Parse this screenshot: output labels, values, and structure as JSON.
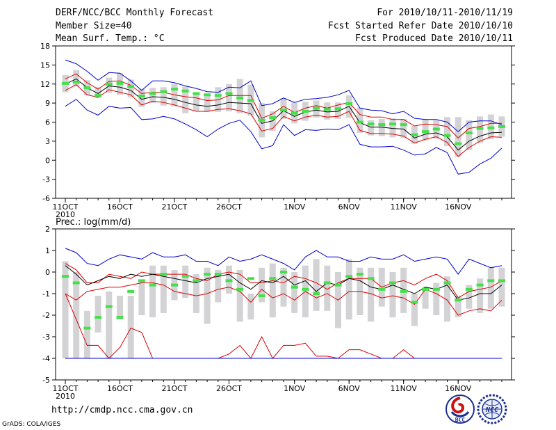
{
  "header": {
    "title": "DERF/NCC/BCC Monthly Forecast",
    "member_size": "Member Size=40",
    "variable": "Mean Surf. Temp.: °C",
    "period": "For 2010/10/11-2010/11/19",
    "started": "Fcst Started Refer Date 2010/10/10",
    "produced": "Fcst Produced Date 2010/10/11"
  },
  "footer": {
    "url": "http://cmdp.ncc.cma.gov.cn",
    "grads": "GrADS: COLA/IGES",
    "logo_bcc": "BCC",
    "logo_ncc": "NCC"
  },
  "colors": {
    "range": "#0000cc",
    "spread": "#dd0000",
    "mean": "#000000",
    "box": "#d3d3d6",
    "bar": "#44e04a",
    "background": "#ffffff"
  },
  "chart_data": [
    {
      "type": "line",
      "title": "Mean Surf. Temp.: °C",
      "ylabel": "°C",
      "ylim": [
        -6,
        18
      ],
      "yticks": [
        -6,
        -3,
        0,
        3,
        6,
        9,
        12,
        15,
        18
      ],
      "x_days": 40,
      "xticks": [
        {
          "day": 0,
          "label": "11OCT",
          "sub": "2010"
        },
        {
          "day": 5,
          "label": "16OCT",
          "sub": ""
        },
        {
          "day": 10,
          "label": "21OCT",
          "sub": ""
        },
        {
          "day": 15,
          "label": "26OCT",
          "sub": ""
        },
        {
          "day": 21,
          "label": "1NOV",
          "sub": ""
        },
        {
          "day": 26,
          "label": "6NOV",
          "sub": ""
        },
        {
          "day": 31,
          "label": "11NOV",
          "sub": ""
        },
        {
          "day": 36,
          "label": "16NOV",
          "sub": ""
        }
      ],
      "series": [
        {
          "name": "max",
          "color": "range",
          "values": [
            15.8,
            15.2,
            14,
            12.6,
            13.8,
            13.7,
            12.5,
            11,
            12.5,
            12.5,
            12.2,
            11.7,
            11.3,
            10.8,
            10.7,
            11.5,
            11.4,
            12.5,
            8.6,
            8.9,
            9.8,
            9.1,
            9.6,
            9.7,
            9.9,
            10.3,
            11,
            8.2,
            7.9,
            7.8,
            7.3,
            7.7,
            6.6,
            6.4,
            6.4,
            6,
            4.5,
            6,
            6.2,
            6.2,
            5.6
          ]
        },
        {
          "name": "upper",
          "color": "spread",
          "values": [
            12.8,
            13.6,
            12.2,
            11.2,
            12.4,
            12.5,
            11.8,
            10.5,
            10.7,
            10.7,
            10.3,
            10,
            9.8,
            9.4,
            9.5,
            10.2,
            10.2,
            10.2,
            6.6,
            7.3,
            8.5,
            7.5,
            8.2,
            8.6,
            8.2,
            8.7,
            9.1,
            7.2,
            6.8,
            6.8,
            6.4,
            6.4,
            5.4,
            5.7,
            5.6,
            5.3,
            3.5,
            5,
            5.3,
            5.8,
            5.8
          ]
        },
        {
          "name": "mean",
          "color": "mean",
          "values": [
            12,
            12.8,
            11.4,
            10.5,
            11.7,
            11.5,
            11,
            9.6,
            10,
            9.9,
            9.6,
            9.1,
            8.7,
            8.5,
            8.7,
            9.1,
            9,
            8.9,
            5.8,
            6.2,
            7.8,
            6.9,
            7.6,
            7.9,
            7.6,
            7.7,
            8.5,
            5.9,
            5.2,
            5.2,
            5,
            4.9,
            3.5,
            4.1,
            4.3,
            3.7,
            1.6,
            3,
            3.8,
            4.3,
            4.4
          ]
        },
        {
          "name": "lower",
          "color": "spread",
          "values": [
            11,
            11.9,
            10.3,
            9.9,
            11.1,
            10.7,
            10.3,
            8.7,
            9.3,
            9.1,
            8.7,
            8.2,
            7.7,
            7.7,
            8,
            8.1,
            7.8,
            7.3,
            4.6,
            5,
            6.9,
            6.2,
            6.8,
            7.1,
            6.8,
            6.9,
            7.7,
            4.7,
            4.2,
            4.2,
            4.1,
            3.8,
            2.7,
            3.3,
            3.7,
            2.8,
            0.6,
            2,
            3,
            3.7,
            3.6
          ]
        },
        {
          "name": "min",
          "color": "range",
          "values": [
            8.5,
            9.6,
            7.9,
            7.1,
            8.5,
            8.2,
            8.3,
            6.4,
            6.5,
            6.9,
            6.5,
            5.7,
            4.8,
            3.7,
            4.9,
            5.8,
            6.3,
            4.5,
            1.8,
            2.3,
            5.6,
            3.9,
            4.8,
            4.7,
            4.9,
            4.8,
            5.6,
            2.5,
            2.1,
            2.1,
            2.2,
            1.6,
            0.8,
            1,
            2,
            1.2,
            -2.2,
            -1.9,
            -0.6,
            0.3,
            1.9
          ]
        }
      ],
      "boxes": [
        [
          10.7,
          13.4
        ],
        [
          11.6,
          14.2
        ],
        [
          10.2,
          12.6
        ],
        [
          9.8,
          11.5
        ],
        [
          10.6,
          13
        ],
        [
          10.3,
          13.7
        ],
        [
          9.9,
          12.7
        ],
        [
          8.4,
          11.2
        ],
        [
          9,
          11.4
        ],
        [
          8.6,
          11.5
        ],
        [
          8.5,
          12
        ],
        [
          7.4,
          11.6
        ],
        [
          7.8,
          10.7
        ],
        [
          7.6,
          10.4
        ],
        [
          7.6,
          11.5
        ],
        [
          7.7,
          12
        ],
        [
          7.4,
          12.8
        ],
        [
          7,
          11.9
        ],
        [
          3.6,
          9
        ],
        [
          4.6,
          7.7
        ],
        [
          6.5,
          9.8
        ],
        [
          5.8,
          9.1
        ],
        [
          6.2,
          9.2
        ],
        [
          6.7,
          9.4
        ],
        [
          6.4,
          9.1
        ],
        [
          6.5,
          9.1
        ],
        [
          6.7,
          10.2
        ],
        [
          4.3,
          8.3
        ],
        [
          3.9,
          6.3
        ],
        [
          3.8,
          6.5
        ],
        [
          3.6,
          6.6
        ],
        [
          3.5,
          6.5
        ],
        [
          2.6,
          5.4
        ],
        [
          3.1,
          6.4
        ],
        [
          3.4,
          6.3
        ],
        [
          2.2,
          6.8
        ],
        [
          0.5,
          6.8
        ],
        [
          1.6,
          6.3
        ],
        [
          2.7,
          6.9
        ],
        [
          3.3,
          7.2
        ],
        [
          3.7,
          6.9
        ]
      ],
      "bars": [
        12.1,
        12.3,
        11.4,
        10.2,
        12,
        12.1,
        11.6,
        10.1,
        10.5,
        10.8,
        11.2,
        10.9,
        10.5,
        10.3,
        10.2,
        10.5,
        9.8,
        9.4,
        6.3,
        6.7,
        7.9,
        7.4,
        7.7,
        8.2,
        8,
        8.1,
        8.9,
        6,
        5.7,
        5.6,
        5.7,
        5.6,
        4,
        4.5,
        4.9,
        3.9,
        2.6,
        4.3,
        5,
        5.1,
        5.3
      ]
    },
    {
      "type": "line",
      "title": "Prec.: log(mm/d)",
      "ylabel": "log(mm/d)",
      "ylim": [
        -5,
        2
      ],
      "yticks": [
        -5,
        -4,
        -3,
        -2,
        -1,
        0,
        1,
        2
      ],
      "x_days": 40,
      "xticks": [
        {
          "day": 0,
          "label": "11OCT",
          "sub": "2010"
        },
        {
          "day": 5,
          "label": "16OCT",
          "sub": ""
        },
        {
          "day": 10,
          "label": "21OCT",
          "sub": ""
        },
        {
          "day": 15,
          "label": "26OCT",
          "sub": ""
        },
        {
          "day": 21,
          "label": "1NOV",
          "sub": ""
        },
        {
          "day": 26,
          "label": "6NOV",
          "sub": ""
        },
        {
          "day": 31,
          "label": "11NOV",
          "sub": ""
        },
        {
          "day": 36,
          "label": "16NOV",
          "sub": ""
        }
      ],
      "series": [
        {
          "name": "max",
          "color": "range",
          "values": [
            1.1,
            0.9,
            0.4,
            0.3,
            0.6,
            0.8,
            0.7,
            0.6,
            0.9,
            0.7,
            0.7,
            0.8,
            0.5,
            0.5,
            0.3,
            0.7,
            0.5,
            0.6,
            0.8,
            0.6,
            0.4,
            0.1,
            0.7,
            1,
            0.7,
            0.7,
            0.5,
            0.5,
            0.7,
            0.6,
            0.6,
            0.8,
            0.5,
            0.6,
            0.7,
            0.6,
            -0.1,
            0.6,
            0.4,
            0.2,
            0.3
          ]
        },
        {
          "name": "upper",
          "color": "spread",
          "values": [
            0.4,
            0.1,
            -0.5,
            -0.5,
            -0.1,
            -0.2,
            -0.3,
            0,
            -0.1,
            -0.1,
            -0.1,
            -0.1,
            -0.3,
            -0.4,
            -0.1,
            0,
            -0.1,
            -0.5,
            -0.5,
            -0.4,
            -0.5,
            -0.2,
            -0.3,
            -0.5,
            -0.8,
            -0.5,
            -0.3,
            -0.3,
            -0.3,
            -0.7,
            -0.5,
            -0.4,
            -0.6,
            -0.3,
            -0.1,
            -0.4,
            -1.2,
            -0.9,
            -0.8,
            -0.7,
            -0.4
          ]
        },
        {
          "name": "mean",
          "color": "mean",
          "values": [
            0.3,
            -0.1,
            -0.6,
            -0.4,
            -0.2,
            -0.3,
            -0.1,
            -0.2,
            -0.1,
            -0.2,
            -0.3,
            -0.4,
            -0.5,
            -0.3,
            -0.2,
            -0.1,
            -0.5,
            -0.8,
            -0.4,
            -0.5,
            -0.2,
            -0.6,
            -0.4,
            -0.9,
            -0.5,
            -0.6,
            -0.3,
            -0.4,
            -0.7,
            -0.8,
            -0.6,
            -0.8,
            -1,
            -0.7,
            -0.8,
            -0.6,
            -1.3,
            -1.2,
            -1,
            -1,
            -0.6
          ]
        },
        {
          "name": "lower",
          "color": "spread",
          "values": [
            -1,
            -1.3,
            -0.9,
            -0.8,
            -0.7,
            -0.7,
            -0.6,
            -0.5,
            -0.5,
            -0.6,
            -0.9,
            -1,
            -1.1,
            -1,
            -0.8,
            -0.7,
            -0.9,
            -1.4,
            -0.8,
            -1.2,
            -1,
            -1.3,
            -0.9,
            -1.2,
            -1,
            -1.3,
            -0.9,
            -0.9,
            -1,
            -1.2,
            -1.1,
            -1.2,
            -1.5,
            -0.8,
            -1,
            -1.3,
            -2,
            -1.8,
            -1.7,
            -1.8,
            -1.3
          ]
        },
        {
          "name": "min",
          "color": "spread",
          "values": [
            -1,
            -2.2,
            -3.4,
            -3.4,
            -4,
            -3.5,
            -2.6,
            -2.8,
            -4,
            -4,
            -4,
            -4,
            -4,
            -4,
            -4,
            -3.8,
            -3.4,
            -4,
            -3,
            -4,
            -3.4,
            -3.4,
            -3.3,
            -3.9,
            -3.9,
            -4,
            -3.6,
            -3.6,
            -3.8,
            -4,
            -4,
            -3.6,
            -4,
            -4,
            -4,
            -4,
            -4,
            -4,
            -4,
            -4,
            -4
          ]
        },
        {
          "name": "floor",
          "color": "range",
          "values": [
            -4,
            -4,
            -4,
            -4,
            -4,
            -4,
            -4,
            -4,
            -4,
            -4,
            -4,
            -4,
            -4,
            -4,
            -4,
            -4,
            -4,
            -4,
            -4,
            -4,
            -4,
            -4,
            -4,
            -4,
            -4,
            -4,
            -4,
            -4,
            -4,
            -4,
            -4,
            -4,
            -4,
            -4,
            -4,
            -4,
            -4,
            -4,
            -4,
            -4,
            -4
          ]
        }
      ],
      "boxes": [
        [
          -4,
          0.5
        ],
        [
          -4,
          0
        ],
        [
          -4,
          -1.8
        ],
        [
          -2.8,
          -1.1
        ],
        [
          -4,
          -0.9
        ],
        [
          -2.2,
          -1.1
        ],
        [
          -4,
          -1.1
        ],
        [
          -2,
          -0.4
        ],
        [
          -2.1,
          0.3
        ],
        [
          -1.9,
          0.3
        ],
        [
          -1.3,
          0.1
        ],
        [
          -1.2,
          0.3
        ],
        [
          -1.9,
          -0.1
        ],
        [
          -2.4,
          0.2
        ],
        [
          -1.4,
          0.1
        ],
        [
          -1,
          0.3
        ],
        [
          -2.3,
          0.1
        ],
        [
          -2.2,
          -1
        ],
        [
          -1.4,
          0.2
        ],
        [
          -2.1,
          0.4
        ],
        [
          -1.6,
          0.2
        ],
        [
          -1.9,
          0
        ],
        [
          -2.1,
          0.3
        ],
        [
          -1.8,
          0.6
        ],
        [
          -1.8,
          0.3
        ],
        [
          -2.6,
          0
        ],
        [
          -2.2,
          0.6
        ],
        [
          -2,
          0.2
        ],
        [
          -2.3,
          0.2
        ],
        [
          -1.6,
          0.2
        ],
        [
          -2.1,
          0
        ],
        [
          -1.9,
          0.2
        ],
        [
          -2.5,
          -1
        ],
        [
          -1.7,
          -0.7
        ],
        [
          -2,
          -0.5
        ],
        [
          -2.3,
          -0.2
        ],
        [
          -2.1,
          -1.1
        ],
        [
          -1.7,
          -0.6
        ],
        [
          -1.9,
          -0.3
        ],
        [
          -1.7,
          0.2
        ],
        [
          -1.6,
          0.2
        ]
      ],
      "bars": [
        -0.2,
        -0.5,
        -2.6,
        -2.1,
        -1.6,
        -2.1,
        -0.9,
        -0.4,
        -0.6,
        -0.1,
        -0.6,
        -0.2,
        -0.4,
        -0.1,
        -0.1,
        -0.4,
        -0.8,
        -0.3,
        -1.1,
        -0.3,
        0,
        -0.7,
        -0.8,
        -1,
        -0.5,
        -0.6,
        -0.2,
        -0.1,
        -0.3,
        -0.8,
        -0.5,
        -0.9,
        -1.4,
        -0.8,
        -0.8,
        -0.5,
        -1.3,
        -0.8,
        -0.6,
        -0.4,
        -0.4
      ]
    }
  ]
}
